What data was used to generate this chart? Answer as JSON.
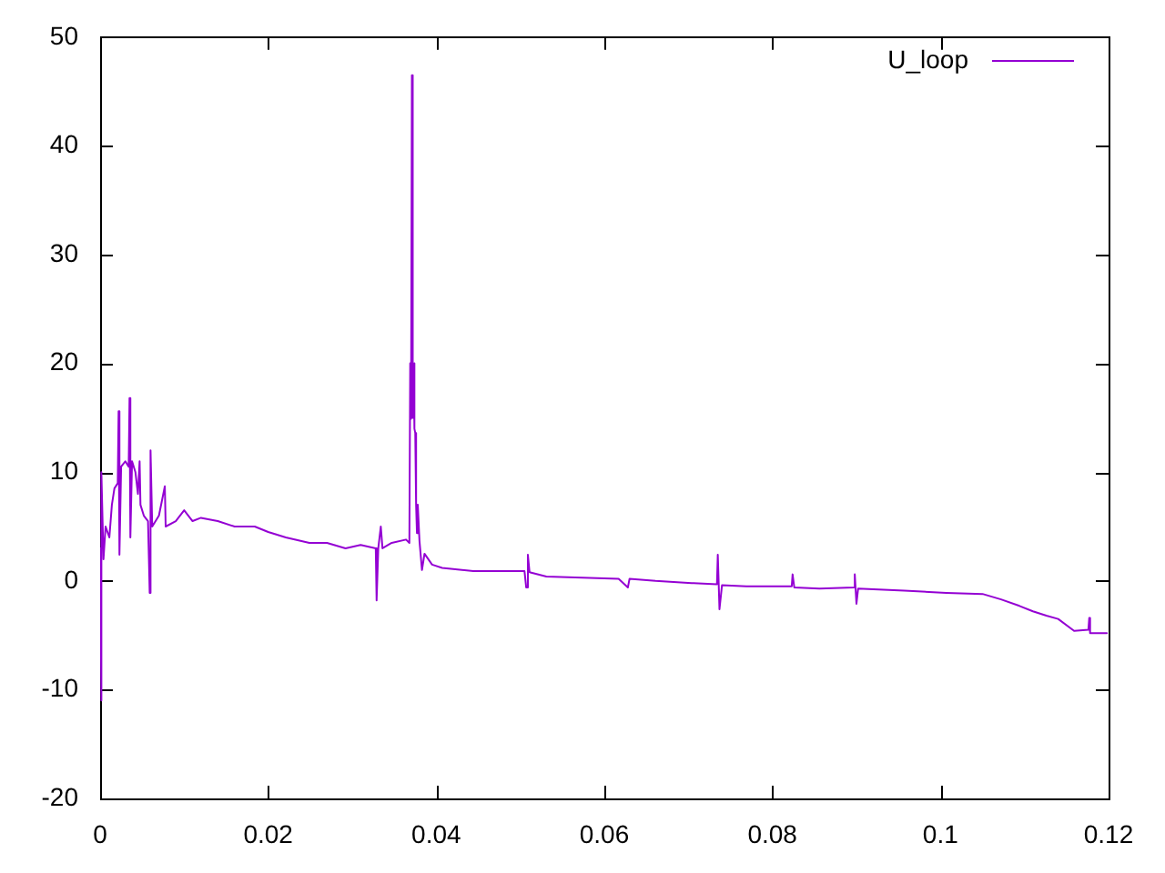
{
  "chart_data": {
    "type": "line",
    "x": [
      0,
      0.0001,
      0.0002,
      0.0004,
      0.00065,
      0.0011,
      0.0014,
      0.0017,
      0.0021,
      0.0022,
      0.0023,
      0.0025,
      0.003,
      0.0034,
      0.0035,
      0.0036,
      0.0038,
      0.0042,
      0.0045,
      0.0047,
      0.0048,
      0.0052,
      0.0057,
      0.0059,
      0.006,
      0.0062,
      0.007,
      0.0077,
      0.0078,
      0.009,
      0.01,
      0.011,
      0.012,
      0.014,
      0.016,
      0.0184,
      0.02,
      0.0221,
      0.0249,
      0.027,
      0.0292,
      0.031,
      0.0328,
      0.0329,
      0.0331,
      0.0334,
      0.0336,
      0.0347,
      0.0364,
      0.0368,
      0.0369,
      0.037,
      0.0371,
      0.0372,
      0.0373,
      0.0374,
      0.0375,
      0.0376,
      0.0377,
      0.0378,
      0.038,
      0.0383,
      0.0386,
      0.0395,
      0.0407,
      0.0444,
      0.0487,
      0.0505,
      0.0507,
      0.0509,
      0.0511,
      0.0531,
      0.0574,
      0.0617,
      0.0628,
      0.063,
      0.0661,
      0.0704,
      0.0734,
      0.0735,
      0.0737,
      0.074,
      0.0769,
      0.0791,
      0.0823,
      0.0824,
      0.0826,
      0.0856,
      0.0897,
      0.0898,
      0.09,
      0.0902,
      0.0957,
      0.1007,
      0.105,
      0.1072,
      0.1094,
      0.111,
      0.1126,
      0.114,
      0.1159,
      0.1176,
      0.1177,
      0.1178,
      0.1198
    ],
    "series": [
      {
        "name": "U_loop",
        "color": "#9400d3",
        "values": [
          3,
          -11,
          10,
          2,
          5,
          4,
          7,
          8.5,
          9,
          15.6,
          2.4,
          10.5,
          11,
          10.5,
          16.8,
          4,
          11,
          10,
          8,
          11,
          7,
          6,
          5.5,
          -1.1,
          12,
          5,
          6,
          8.7,
          5,
          5.5,
          6.5,
          5.5,
          5.8,
          5.5,
          5,
          5,
          4.5,
          4,
          3.5,
          3.5,
          3,
          3.3,
          3,
          -1.8,
          3,
          5,
          3,
          3.5,
          3.8,
          3.5,
          20,
          14.9,
          46.5,
          15,
          20,
          14,
          13.6,
          7,
          4.4,
          7,
          3.7,
          1,
          2.5,
          1.5,
          1.2,
          0.9,
          0.9,
          0.9,
          -0.6,
          2.4,
          0.8,
          0.4,
          0.3,
          0.2,
          -0.6,
          0.2,
          0,
          -0.2,
          -0.3,
          2.4,
          -2.6,
          -0.4,
          -0.5,
          -0.5,
          -0.5,
          0.6,
          -0.6,
          -0.7,
          -0.6,
          0.6,
          -2.1,
          -0.7,
          -0.9,
          -1.1,
          -1.2,
          -1.7,
          -2.3,
          -2.8,
          -3.2,
          -3.5,
          -4.6,
          -4.5,
          -3.4,
          -4.8,
          -4.8
        ]
      }
    ],
    "xlim": [
      0,
      0.12
    ],
    "xticks": [
      0,
      0.02,
      0.04,
      0.06,
      0.08,
      0.1,
      0.12
    ],
    "ylim": [
      -20,
      50
    ],
    "yticks": [
      -20,
      -10,
      0,
      10,
      20,
      30,
      40,
      50
    ],
    "legend": "top right"
  }
}
